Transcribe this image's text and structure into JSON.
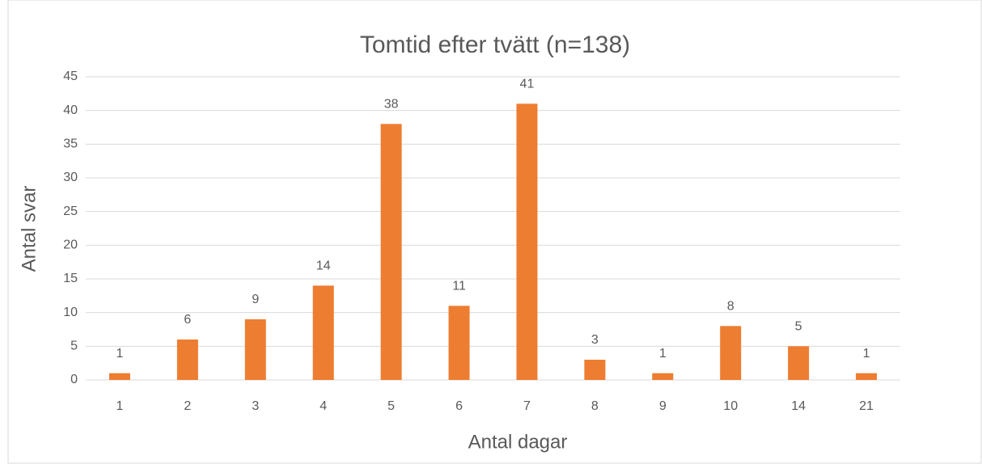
{
  "chart_data": {
    "type": "bar",
    "title": "Tomtid efter tvätt (n=138)",
    "x_label": "Antal dagar",
    "y_label": "Antal svar",
    "categories": [
      "1",
      "2",
      "3",
      "4",
      "5",
      "6",
      "7",
      "8",
      "9",
      "10",
      "14",
      "21"
    ],
    "values": [
      1,
      6,
      9,
      14,
      38,
      11,
      41,
      3,
      1,
      8,
      5,
      1
    ],
    "color": "#ed7d31",
    "ylim": [
      0,
      45
    ],
    "yticks": [
      0,
      5,
      10,
      15,
      20,
      25,
      30,
      35,
      40,
      45
    ],
    "grid": true
  }
}
